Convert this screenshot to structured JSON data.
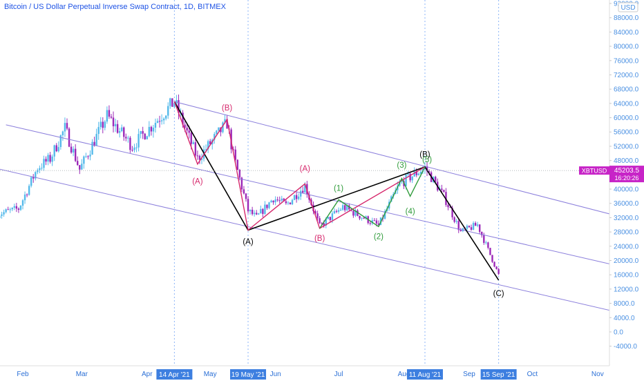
{
  "header": {
    "title": "Bitcoin / US Dollar Perpetual Inverse Swap Contract, 1D, BITMEX"
  },
  "colors": {
    "up": "#53b9ea",
    "down": "#9b28b8",
    "channel": "#8b7fdc",
    "wave_black": "#000000",
    "wave_pink": "#d6286c",
    "wave_green": "#2f9b3a",
    "price_badge": "#c724c7",
    "axis_text": "#4a90e2",
    "vline": "#8ab4f8"
  },
  "chart_data": {
    "type": "candlestick",
    "symbol": "XBTUSD",
    "currency": "USD",
    "last_price": "45203.5",
    "countdown": "16:20:26",
    "y_axis": {
      "ylim": [
        -6000,
        92000
      ],
      "ticks": [
        "92000.0",
        "88000.0",
        "84000.0",
        "80000.0",
        "76000.0",
        "72000.0",
        "68000.0",
        "64000.0",
        "60000.0",
        "56000.0",
        "52000.0",
        "48000.0",
        "44000.0",
        "40000.0",
        "36000.0",
        "32000.0",
        "28000.0",
        "24000.0",
        "20000.0",
        "16000.0",
        "12000.0",
        "8000.0",
        "4000.0",
        "0.0",
        "-4000.0"
      ]
    },
    "x_axis": {
      "ticks": [
        "Feb",
        "Mar",
        "Apr",
        "May",
        "Jun",
        "Jul",
        "Aug",
        "Sep",
        "Oct",
        "Nov"
      ],
      "highlighted": [
        "14 Apr '21",
        "19 May '21",
        "11 Aug '21",
        "15 Sep '21"
      ]
    },
    "price_anchors": [
      {
        "date": "2021-01-20",
        "price": 33000
      },
      {
        "date": "2021-01-30",
        "price": 34500
      },
      {
        "date": "2021-02-08",
        "price": 46000
      },
      {
        "date": "2021-02-14",
        "price": 48500
      },
      {
        "date": "2021-02-21",
        "price": 57000
      },
      {
        "date": "2021-02-28",
        "price": 45500
      },
      {
        "date": "2021-03-13",
        "price": 60500
      },
      {
        "date": "2021-03-25",
        "price": 52000
      },
      {
        "date": "2021-04-14",
        "price": 64500
      },
      {
        "date": "2021-04-25",
        "price": 48500
      },
      {
        "date": "2021-05-09",
        "price": 58500
      },
      {
        "date": "2021-05-12",
        "price": 49500
      },
      {
        "date": "2021-05-19",
        "price": 34000
      },
      {
        "date": "2021-05-23",
        "price": 32000
      },
      {
        "date": "2021-05-31",
        "price": 37500
      },
      {
        "date": "2021-06-06",
        "price": 35500
      },
      {
        "date": "2021-06-15",
        "price": 41000
      },
      {
        "date": "2021-06-22",
        "price": 29500
      },
      {
        "date": "2021-07-03",
        "price": 35000
      },
      {
        "date": "2021-07-20",
        "price": 29800
      },
      {
        "date": "2021-07-30",
        "price": 41500
      },
      {
        "date": "2021-08-11",
        "price": 46000
      },
      {
        "date": "2021-08-20",
        "price": 38000
      },
      {
        "date": "2021-08-28",
        "price": 28000
      },
      {
        "date": "2021-09-05",
        "price": 30000
      },
      {
        "date": "2021-09-15",
        "price": 16000
      }
    ],
    "channels": [
      {
        "start": {
          "date": "2021-01-24",
          "price": 58000
        },
        "end": {
          "date": "2021-11-07",
          "price": 19000
        }
      },
      {
        "start": {
          "date": "2021-01-18",
          "price": 46000
        },
        "end": {
          "date": "2021-11-07",
          "price": 6000
        }
      },
      {
        "start": {
          "date": "2021-04-14",
          "price": 64500
        },
        "end": {
          "date": "2021-11-07",
          "price": 33000
        }
      }
    ],
    "wave_lines": [
      {
        "color": "wave_black",
        "points": [
          {
            "date": "2021-04-14",
            "price": 64500
          },
          {
            "date": "2021-05-19",
            "price": 28500
          },
          {
            "date": "2021-08-11",
            "price": 46200
          },
          {
            "date": "2021-09-15",
            "price": 14500
          }
        ]
      },
      {
        "color": "wave_pink",
        "points": [
          {
            "date": "2021-04-14",
            "price": 64500
          },
          {
            "date": "2021-04-25",
            "price": 47000
          },
          {
            "date": "2021-05-09",
            "price": 59500
          },
          {
            "date": "2021-05-19",
            "price": 28500
          },
          {
            "date": "2021-06-15",
            "price": 41500
          },
          {
            "date": "2021-06-22",
            "price": 29000
          },
          {
            "date": "2021-08-11",
            "price": 46200
          }
        ]
      },
      {
        "color": "wave_green",
        "points": [
          {
            "date": "2021-06-22",
            "price": 29000
          },
          {
            "date": "2021-07-01",
            "price": 37000
          },
          {
            "date": "2021-07-20",
            "price": 29500
          },
          {
            "date": "2021-07-31",
            "price": 43000
          },
          {
            "date": "2021-08-04",
            "price": 38000
          },
          {
            "date": "2021-08-11",
            "price": 46200
          }
        ]
      }
    ],
    "wave_labels": [
      {
        "text": "(B)",
        "color": "wave_pink",
        "date": "2021-05-09",
        "price": 62000
      },
      {
        "text": "(A)",
        "color": "wave_pink",
        "date": "2021-04-25",
        "price": 41500
      },
      {
        "text": "(A)",
        "color": "wave_black",
        "date": "2021-05-19",
        "price": 24500
      },
      {
        "text": "(A)",
        "color": "wave_pink",
        "date": "2021-06-15",
        "price": 45000
      },
      {
        "text": "(B)",
        "color": "wave_pink",
        "date": "2021-06-22",
        "price": 25500
      },
      {
        "text": "(1)",
        "color": "wave_green",
        "date": "2021-07-01",
        "price": 39500
      },
      {
        "text": "(2)",
        "color": "wave_green",
        "date": "2021-07-20",
        "price": 26000
      },
      {
        "text": "(3)",
        "color": "wave_green",
        "date": "2021-07-31",
        "price": 46000
      },
      {
        "text": "(4)",
        "color": "wave_green",
        "date": "2021-08-04",
        "price": 33000
      },
      {
        "text": "(B)",
        "color": "wave_black",
        "date": "2021-08-11",
        "price": 49000
      },
      {
        "text": "(5)",
        "color": "wave_green",
        "date": "2021-08-12",
        "price": 47500
      },
      {
        "text": "(C)",
        "color": "wave_black",
        "date": "2021-09-15",
        "price": 10000
      }
    ]
  }
}
